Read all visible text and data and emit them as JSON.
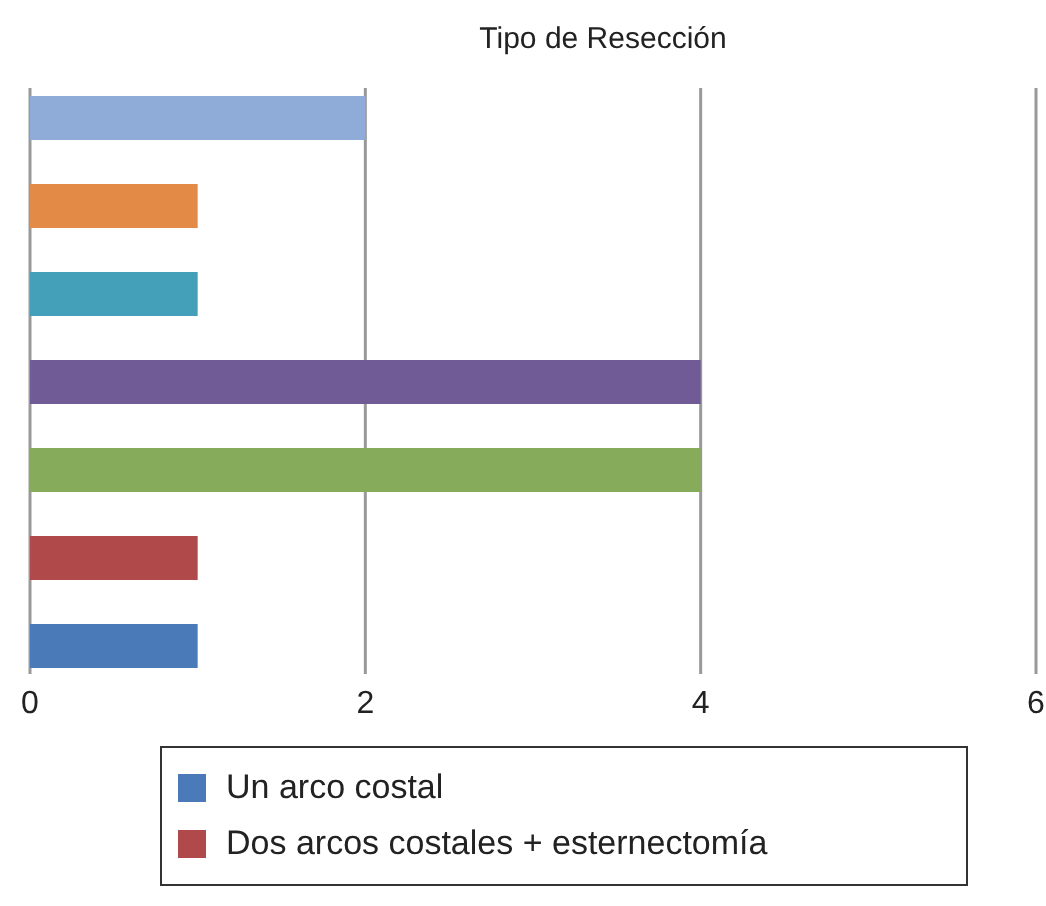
{
  "chart_data": {
    "type": "bar",
    "orientation": "horizontal",
    "title": "Tipo de Resección",
    "categories": [
      null
    ],
    "series": [
      {
        "name": "Un arco costal",
        "color": "#4a7ab8",
        "values": [
          1
        ]
      },
      {
        "name": "Dos arcos costales + esternectomía",
        "color": "#b04a4a",
        "values": [
          1
        ]
      },
      {
        "color": "#86ab5a",
        "values": [
          4
        ]
      },
      {
        "color": "#715b97",
        "values": [
          4
        ]
      },
      {
        "color": "#44a0b8",
        "values": [
          1
        ]
      },
      {
        "color": "#e28a46",
        "values": [
          1
        ]
      },
      {
        "color": "#8fabd8",
        "values": [
          2
        ]
      }
    ],
    "xlim": [
      0,
      6
    ],
    "xticks": [
      0,
      2,
      4,
      6
    ],
    "grid": "x",
    "legend": "bottom"
  }
}
